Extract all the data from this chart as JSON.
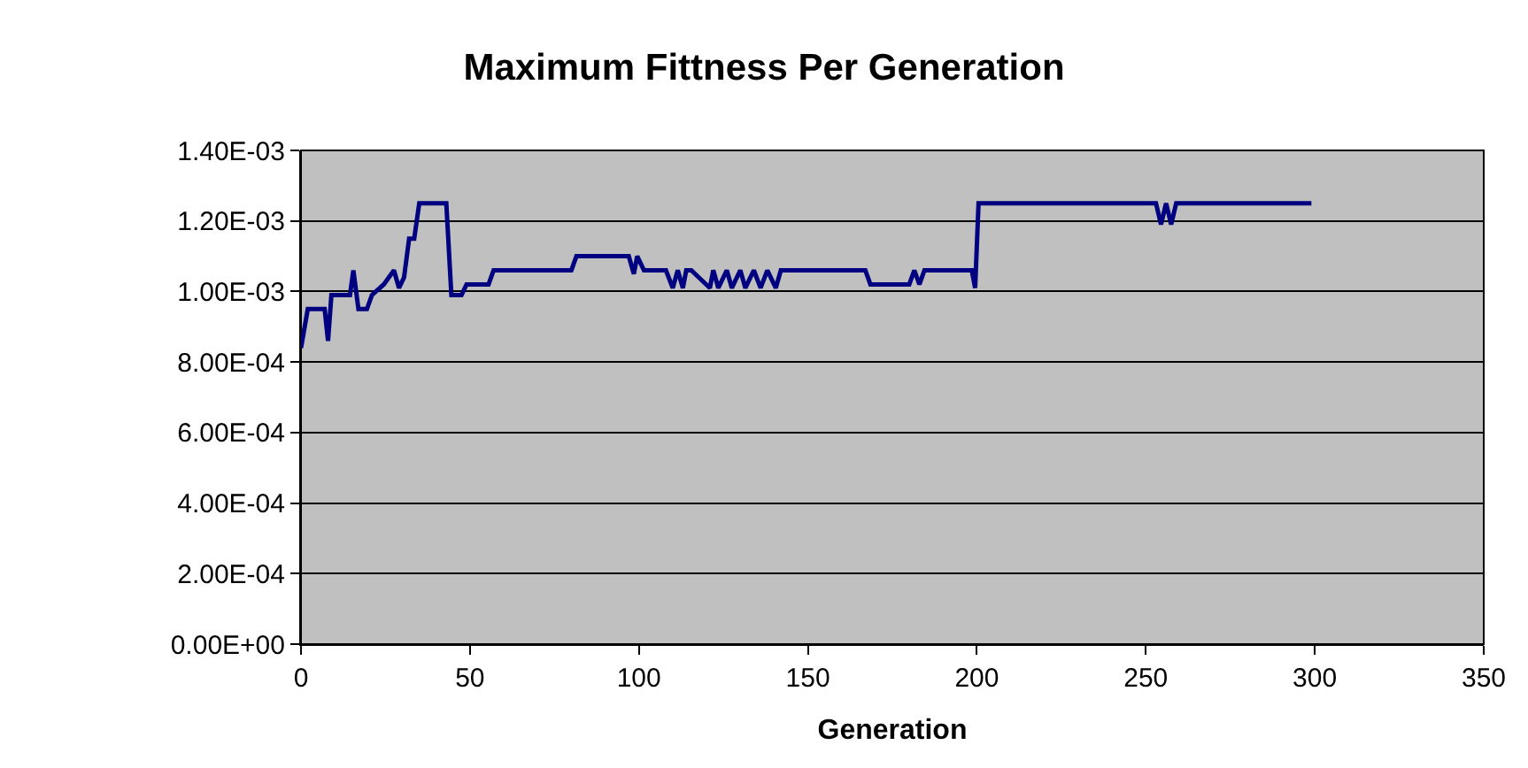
{
  "chart_data": {
    "type": "line",
    "title": "Maximum Fittness Per Generation",
    "xlabel": "Generation",
    "x": [
      0,
      2,
      7,
      8,
      9,
      14.5,
      15.5,
      17,
      19.5,
      21,
      24.5,
      27.5,
      29,
      30.5,
      32,
      33.5,
      35,
      43,
      44.5,
      47.5,
      49,
      55.5,
      57,
      80,
      81.5,
      97,
      98.5,
      99.5,
      101.5,
      108,
      110,
      111.5,
      113,
      114,
      115.5,
      121,
      122,
      123.5,
      126,
      127.5,
      130,
      131.5,
      134,
      136,
      138,
      140.5,
      142,
      144,
      145.5,
      167,
      168.5,
      180,
      181.5,
      183,
      184.5,
      186,
      198.5,
      199.5,
      200.5,
      201.5,
      253,
      254.5,
      256,
      257.5,
      259,
      299
    ],
    "series": [
      {
        "color": "#000080",
        "values": [
          0.00084,
          0.00095,
          0.00095,
          0.00086,
          0.00099,
          0.00099,
          0.00106,
          0.00095,
          0.00095,
          0.00099,
          0.00102,
          0.00106,
          0.00101,
          0.00104,
          0.00115,
          0.00115,
          0.00125,
          0.00125,
          0.00099,
          0.00099,
          0.00102,
          0.00102,
          0.00106,
          0.00106,
          0.0011,
          0.0011,
          0.00105,
          0.0011,
          0.00106,
          0.00106,
          0.00101,
          0.00106,
          0.00101,
          0.00106,
          0.00106,
          0.00101,
          0.00106,
          0.00101,
          0.00106,
          0.00101,
          0.00106,
          0.00101,
          0.00106,
          0.00101,
          0.00106,
          0.00101,
          0.00106,
          0.00106,
          0.00106,
          0.00106,
          0.00102,
          0.00102,
          0.00106,
          0.00102,
          0.00106,
          0.00106,
          0.00106,
          0.00101,
          0.00125,
          0.00125,
          0.00125,
          0.00119,
          0.00125,
          0.00119,
          0.00125,
          0.00125
        ]
      }
    ],
    "xlim": [
      0,
      350
    ],
    "xticks": [
      0,
      50,
      100,
      150,
      200,
      250,
      300,
      350
    ],
    "ylim": [
      0,
      0.0014
    ],
    "yticks": [
      {
        "value": 0,
        "label": "0.00E+00"
      },
      {
        "value": 0.0002,
        "label": "2.00E-04"
      },
      {
        "value": 0.0004,
        "label": "4.00E-04"
      },
      {
        "value": 0.0006,
        "label": "6.00E-04"
      },
      {
        "value": 0.0008,
        "label": "8.00E-04"
      },
      {
        "value": 0.001,
        "label": "1.00E-03"
      },
      {
        "value": 0.0012,
        "label": "1.20E-03"
      },
      {
        "value": 0.0014,
        "label": "1.40E-03"
      }
    ],
    "grid": "y",
    "legend": false,
    "marker": "none",
    "line_style": "solid"
  }
}
